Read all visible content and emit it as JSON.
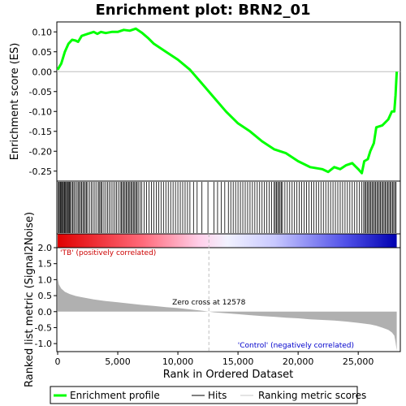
{
  "chart_data": {
    "type": "line",
    "title": "Enrichment plot: BRN2_01",
    "top_panel": {
      "ylabel": "Enrichment score (ES)",
      "ylim": [
        -0.275,
        0.125
      ],
      "yticks": [
        0.1,
        0.05,
        0.0,
        -0.05,
        -0.1,
        -0.15,
        -0.2,
        -0.25
      ],
      "ytick_labels": [
        "0.10",
        "0.05",
        "0.00",
        "-0.05",
        "-0.10",
        "-0.15",
        "-0.20",
        "-0.25"
      ],
      "series": [
        {
          "name": "Enrichment profile",
          "color": "#00ff00",
          "x": [
            0,
            300,
            600,
            900,
            1200,
            1500,
            1700,
            2000,
            2500,
            3000,
            3300,
            3600,
            4000,
            4500,
            5000,
            5500,
            6000,
            6500,
            7000,
            7500,
            8000,
            9000,
            10000,
            11000,
            12000,
            13000,
            14000,
            15000,
            16000,
            17000,
            18000,
            19000,
            20000,
            21000,
            22000,
            22500,
            23000,
            23500,
            24000,
            24500,
            25000,
            25300,
            25500,
            25800,
            26000,
            26300,
            26500,
            27000,
            27500,
            27800,
            28000,
            28100,
            28200
          ],
          "values": [
            0.005,
            0.02,
            0.05,
            0.07,
            0.08,
            0.078,
            0.075,
            0.09,
            0.095,
            0.1,
            0.095,
            0.1,
            0.097,
            0.1,
            0.1,
            0.105,
            0.103,
            0.108,
            0.098,
            0.085,
            0.07,
            0.05,
            0.03,
            0.005,
            -0.03,
            -0.065,
            -0.1,
            -0.13,
            -0.15,
            -0.175,
            -0.195,
            -0.205,
            -0.225,
            -0.24,
            -0.245,
            -0.252,
            -0.24,
            -0.245,
            -0.235,
            -0.23,
            -0.245,
            -0.255,
            -0.225,
            -0.22,
            -0.2,
            -0.18,
            -0.14,
            -0.135,
            -0.12,
            -0.1,
            -0.1,
            -0.06,
            0.0
          ]
        }
      ]
    },
    "hits_panel": {
      "legend_label": "Hits",
      "hit_positions": [
        50,
        120,
        200,
        260,
        330,
        400,
        470,
        550,
        610,
        680,
        760,
        830,
        900,
        980,
        1050,
        1150,
        1250,
        1350,
        1450,
        1600,
        1700,
        1800,
        1900,
        2000,
        2100,
        2200,
        2300,
        2400,
        2500,
        2650,
        2800,
        2950,
        3100,
        3250,
        3400,
        3500,
        3600,
        3700,
        3850,
        4000,
        4150,
        4300,
        4450,
        4600,
        4750,
        4900,
        5050,
        5200,
        5300,
        5400,
        5500,
        5600,
        5700,
        5800,
        5900,
        6000,
        6100,
        6200,
        6300,
        6400,
        6500,
        6600,
        6700,
        6850,
        7000,
        7200,
        7400,
        7600,
        7800,
        8000,
        8200,
        8400,
        8600,
        8800,
        9000,
        9200,
        9400,
        9600,
        9800,
        10000,
        10200,
        10400,
        10600,
        10800,
        11000,
        11300,
        11600,
        12000,
        12500,
        13000,
        13300,
        13600,
        13900,
        14200,
        14400,
        14600,
        14800,
        15000,
        15200,
        15400,
        15600,
        15800,
        16000,
        16200,
        16400,
        16600,
        16800,
        17000,
        17200,
        17400,
        17600,
        17800,
        18000,
        18100,
        18200,
        18300,
        18400,
        18500,
        18600,
        18700,
        18900,
        19100,
        19300,
        19500,
        19700,
        19900,
        20100,
        20300,
        20500,
        20700,
        20900,
        21100,
        21300,
        21500,
        21700,
        21900,
        22100,
        22300,
        22500,
        22700,
        22900,
        23100,
        23300,
        23500,
        23700,
        23900,
        24100,
        24300,
        24500,
        24700,
        24900,
        25100,
        25300,
        25450,
        25550,
        25650,
        25750,
        25850,
        25950,
        26050,
        26150,
        26250,
        26350,
        26450,
        26550,
        26650,
        26750,
        26850,
        26950,
        27050,
        27150,
        27250,
        27350,
        27450,
        27550,
        27650,
        27750,
        27850,
        27950,
        28050,
        28150
      ]
    },
    "bottom_panel": {
      "ylabel": "Ranked list metric (Signal2Noise)",
      "xlabel": "Rank in Ordered Dataset",
      "ylim": [
        -1.25,
        2.0
      ],
      "yticks": [
        2.0,
        1.5,
        1.0,
        0.5,
        0.0,
        -0.5,
        -1.0
      ],
      "ytick_labels": [
        "2.0",
        "1.5",
        "1.0",
        "0.5",
        "0.0",
        "-0.5",
        "-1.0"
      ],
      "xlim": [
        0,
        28500
      ],
      "xticks": [
        0,
        5000,
        10000,
        15000,
        20000,
        25000
      ],
      "xtick_labels": [
        "0",
        "5,000",
        "10,000",
        "15,000",
        "20,000",
        "25,000"
      ],
      "metric_x": [
        0,
        100,
        300,
        600,
        1000,
        1500,
        2000,
        3000,
        4000,
        5000,
        6000,
        7000,
        8000,
        9000,
        10000,
        11000,
        12000,
        12578,
        13000,
        14000,
        15000,
        16000,
        17000,
        18000,
        19000,
        20000,
        21000,
        22000,
        23000,
        24000,
        25000,
        26000,
        26500,
        27000,
        27500,
        27800,
        28000,
        28100,
        28200
      ],
      "metric_values": [
        1.05,
        0.85,
        0.72,
        0.62,
        0.55,
        0.49,
        0.45,
        0.38,
        0.33,
        0.29,
        0.25,
        0.21,
        0.18,
        0.14,
        0.11,
        0.07,
        0.03,
        0.0,
        -0.02,
        -0.05,
        -0.08,
        -0.11,
        -0.14,
        -0.16,
        -0.19,
        -0.21,
        -0.24,
        -0.26,
        -0.28,
        -0.31,
        -0.35,
        -0.4,
        -0.44,
        -0.5,
        -0.57,
        -0.65,
        -0.75,
        -0.95,
        -1.22
      ],
      "zero_cross_label": "Zero cross at 12578",
      "zero_cross_x": 12578,
      "positive_label": "'TB' (positively correlated)",
      "negative_label": "'Control' (negatively correlated)"
    },
    "legend": {
      "placement": "bottom",
      "entries": [
        "Enrichment profile",
        "Hits",
        "Ranking metric scores"
      ]
    },
    "colors": {
      "profile": "#00ff00",
      "hits": "#000000",
      "metric_fill": "#b0b0b0",
      "positive_text": "#cc0000",
      "negative_text": "#0000cc",
      "zero_line": "#c0c0c0"
    }
  }
}
